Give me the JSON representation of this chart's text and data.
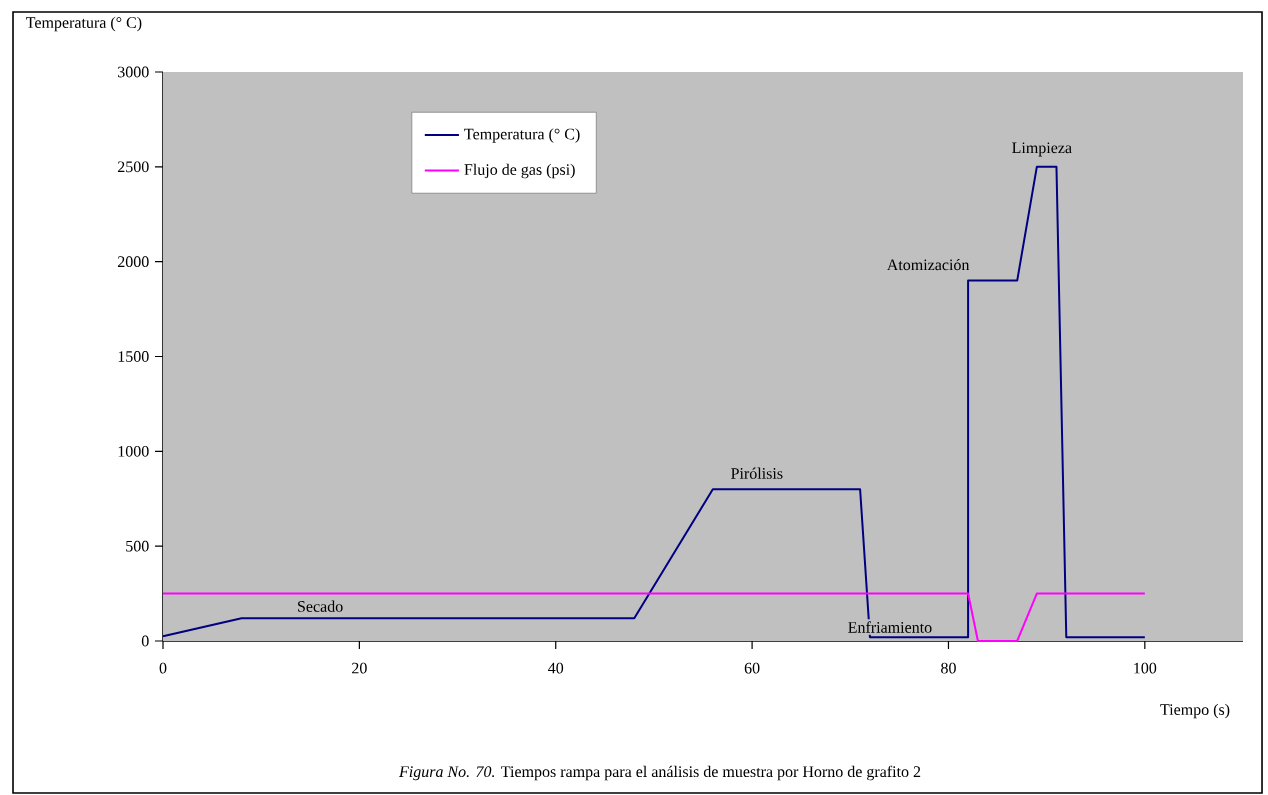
{
  "chart_data": {
    "type": "line",
    "xlabel": "Tiempo (s)",
    "ylabel": "Temperatura (° C)",
    "xlim": [
      0,
      110
    ],
    "ylim": [
      0,
      3000
    ],
    "xticks": [
      0,
      20,
      40,
      60,
      80,
      100
    ],
    "yticks": [
      0,
      500,
      1000,
      1500,
      2000,
      2500,
      3000
    ],
    "grid": false,
    "legend": "top left",
    "marker": "none",
    "line_style": "solid",
    "series": [
      {
        "name": "Temperatura (° C)",
        "color": "#000080",
        "x": [
          0,
          8,
          48,
          56,
          71,
          72,
          82,
          82,
          87,
          89,
          91,
          92,
          100
        ],
        "values": [
          25,
          120,
          120,
          800,
          800,
          20,
          20,
          1900,
          1900,
          2500,
          2500,
          20,
          20
        ]
      },
      {
        "name": "Flujo de gas (psi)",
        "color": "#ff00ff",
        "x": [
          0,
          82,
          83,
          87,
          89,
          100
        ],
        "values": [
          250,
          250,
          0,
          0,
          250,
          250
        ]
      }
    ],
    "annotations": [
      {
        "text": "Secado",
        "x": 16,
        "y": 120
      },
      {
        "text": "Pirólisis",
        "x": 56,
        "y": 800
      },
      {
        "text": "Enfriamiento",
        "x": 72,
        "y": 20
      },
      {
        "text": "Atomización",
        "x": 82,
        "y": 1900
      },
      {
        "text": "Limpieza",
        "x": 89,
        "y": 2500
      },
      "*Figura No. 70.* Tiempos rampa para el análisis de muestra por Horno de grafito 2"
    ]
  }
}
